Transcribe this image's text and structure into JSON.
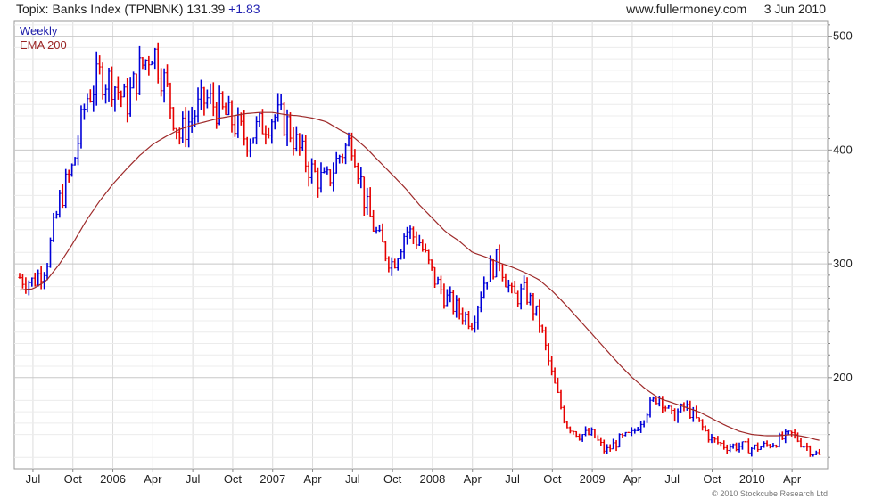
{
  "header": {
    "title": "Topix: Banks Index (TPNBNK)",
    "price": "131.39",
    "change": "+1.83",
    "source": "www.fullermoney.com",
    "date": "3 Jun 2010"
  },
  "footer": {
    "copyright": "© 2010 Stockcube Research Ltd"
  },
  "colors": {
    "up": "#0000d8",
    "down": "#e60000",
    "ema": "#9e2a2a",
    "grid": "#dcdcdc"
  },
  "chart_data": {
    "type": "line",
    "title": "Topix: Banks Index (TPNBNK)",
    "xlabel": "",
    "ylabel": "",
    "ylim": [
      120,
      513
    ],
    "y_ticks": [
      200,
      300,
      400,
      500
    ],
    "x_ticks": [
      "Jul",
      "Oct",
      "2006",
      "Apr",
      "Jul",
      "Oct",
      "2007",
      "Apr",
      "Jul",
      "Oct",
      "2008",
      "Apr",
      "Jul",
      "Oct",
      "2009",
      "Apr",
      "Jul",
      "Oct",
      "2010",
      "Apr"
    ],
    "grid": true,
    "legend": "top-left",
    "series": [
      {
        "name": "Weekly",
        "style": "ohlc-bars",
        "x": [
          "2005-06",
          "2005-07",
          "2005-08",
          "2005-09",
          "2005-10",
          "2005-11",
          "2005-12",
          "2006-01",
          "2006-02",
          "2006-03",
          "2006-04",
          "2006-05",
          "2006-06",
          "2006-07",
          "2006-08",
          "2006-09",
          "2006-10",
          "2006-11",
          "2006-12",
          "2007-01",
          "2007-02",
          "2007-03",
          "2007-04",
          "2007-05",
          "2007-06",
          "2007-07",
          "2007-08",
          "2007-09",
          "2007-10",
          "2007-11",
          "2007-12",
          "2008-01",
          "2008-02",
          "2008-03",
          "2008-04",
          "2008-05",
          "2008-06",
          "2008-07",
          "2008-08",
          "2008-09",
          "2008-10",
          "2008-11",
          "2008-12",
          "2009-01",
          "2009-02",
          "2009-03",
          "2009-04",
          "2009-05",
          "2009-06",
          "2009-07",
          "2009-08",
          "2009-09",
          "2009-10",
          "2009-11",
          "2009-12",
          "2010-01",
          "2010-02",
          "2010-03",
          "2010-04",
          "2010-05",
          "2010-06"
        ],
        "values": [
          288,
          284,
          300,
          355,
          385,
          445,
          465,
          460,
          440,
          470,
          490,
          455,
          412,
          430,
          445,
          435,
          425,
          410,
          420,
          430,
          425,
          400,
          380,
          370,
          395,
          410,
          350,
          320,
          300,
          330,
          320,
          290,
          270,
          258,
          250,
          290,
          305,
          270,
          275,
          250,
          200,
          160,
          150,
          150,
          135,
          145,
          150,
          170,
          185,
          165,
          175,
          160,
          145,
          140,
          140,
          138,
          140,
          145,
          150,
          140,
          131
        ]
      },
      {
        "name": "EMA 200",
        "x": [
          "2005-06",
          "2005-07",
          "2005-08",
          "2005-09",
          "2005-10",
          "2005-11",
          "2005-12",
          "2006-01",
          "2006-02",
          "2006-03",
          "2006-04",
          "2006-05",
          "2006-06",
          "2006-07",
          "2006-08",
          "2006-09",
          "2006-10",
          "2006-11",
          "2006-12",
          "2007-01",
          "2007-02",
          "2007-03",
          "2007-04",
          "2007-05",
          "2007-06",
          "2007-07",
          "2007-08",
          "2007-09",
          "2007-10",
          "2007-11",
          "2007-12",
          "2008-01",
          "2008-02",
          "2008-03",
          "2008-04",
          "2008-05",
          "2008-06",
          "2008-07",
          "2008-08",
          "2008-09",
          "2008-10",
          "2008-11",
          "2008-12",
          "2009-01",
          "2009-02",
          "2009-03",
          "2009-04",
          "2009-05",
          "2009-06",
          "2009-07",
          "2009-08",
          "2009-09",
          "2009-10",
          "2009-11",
          "2009-12",
          "2010-01",
          "2010-02",
          "2010-03",
          "2010-04",
          "2010-05",
          "2010-06"
        ],
        "values": [
          277,
          278,
          285,
          300,
          318,
          338,
          355,
          370,
          383,
          395,
          405,
          412,
          418,
          422,
          425,
          428,
          430,
          432,
          433,
          433,
          431,
          430,
          428,
          425,
          418,
          412,
          402,
          390,
          378,
          366,
          352,
          340,
          328,
          320,
          310,
          306,
          301,
          297,
          292,
          286,
          276,
          264,
          251,
          238,
          225,
          212,
          200,
          190,
          182,
          178,
          174,
          170,
          164,
          158,
          153,
          150,
          149,
          149,
          150,
          148,
          145
        ]
      }
    ]
  }
}
